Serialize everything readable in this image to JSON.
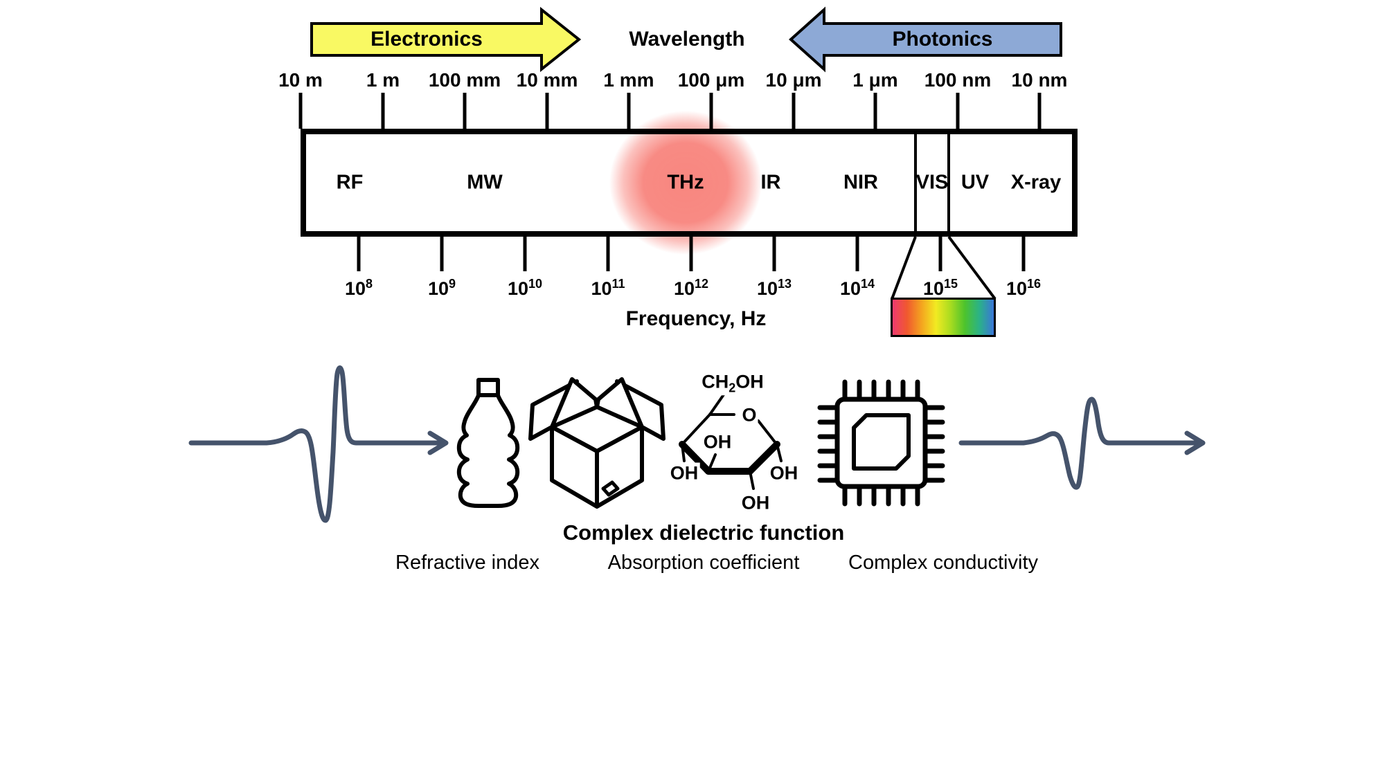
{
  "figure": {
    "arrows": {
      "electronics": "Electronics",
      "photonics": "Photonics"
    },
    "axis_top": {
      "title": "Wavelength",
      "ticks": [
        "10 m",
        "1 m",
        "100 mm",
        "10 mm",
        "1 mm",
        "100 μm",
        "10 μm",
        "1 μm",
        "100 nm",
        "10 nm"
      ]
    },
    "axis_bottom": {
      "title": "Frequency, Hz",
      "ticks": [
        {
          "mantissa": "10",
          "exponent": "8"
        },
        {
          "mantissa": "10",
          "exponent": "9"
        },
        {
          "mantissa": "10",
          "exponent": "10"
        },
        {
          "mantissa": "10",
          "exponent": "11"
        },
        {
          "mantissa": "10",
          "exponent": "12"
        },
        {
          "mantissa": "10",
          "exponent": "13"
        },
        {
          "mantissa": "10",
          "exponent": "14"
        },
        {
          "mantissa": "10",
          "exponent": "15"
        },
        {
          "mantissa": "10",
          "exponent": "16"
        }
      ]
    },
    "bands": [
      "RF",
      "MW",
      "THz",
      "IR",
      "NIR",
      "VIS",
      "UV",
      "X-ray"
    ],
    "highlighted_band": "THz",
    "molecule": {
      "ch2oh_pre": "CH",
      "ch2oh_sub": "2",
      "ch2oh_post": "OH",
      "ring_oxygen": "O",
      "hydroxyl": "OH"
    },
    "captions": {
      "bold": "Complex dielectric function",
      "items": [
        "Refractive index",
        "Absorption coefficient",
        "Complex conductivity"
      ]
    },
    "colors": {
      "electronics_arrow": "#f9f963",
      "photonics_arrow": "#8da9d6",
      "thz_glow": "#f7766e",
      "waveform": "#45536b",
      "visible_spectrum": [
        "#ee3a70",
        "#f0592f",
        "#f4a41f",
        "#f2ea22",
        "#a9dc20",
        "#4dc32c",
        "#2bb287",
        "#3a76d8"
      ]
    }
  }
}
